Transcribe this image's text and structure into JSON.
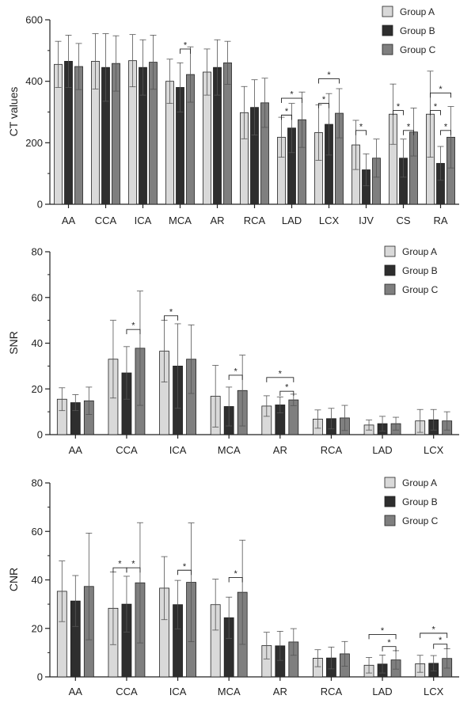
{
  "chart_data": [
    {
      "type": "bar",
      "ylabel": "CT values",
      "ylim": [
        0,
        600
      ],
      "yticks": [
        0,
        200,
        400,
        600
      ],
      "categories": [
        "AA",
        "CCA",
        "ICA",
        "MCA",
        "AR",
        "RCA",
        "LAD",
        "LCX",
        "IJV",
        "CS",
        "RA"
      ],
      "series": [
        {
          "name": "Group A",
          "color": "#d9d9d9",
          "values": [
            455,
            465,
            467,
            400,
            430,
            298,
            218,
            233,
            193,
            293,
            293
          ],
          "errors": [
            75,
            90,
            85,
            72,
            75,
            85,
            65,
            90,
            80,
            98,
            140
          ]
        },
        {
          "name": "Group B",
          "color": "#2e2e2e",
          "values": [
            465,
            445,
            445,
            380,
            445,
            315,
            248,
            260,
            112,
            150,
            133
          ],
          "errors": [
            85,
            110,
            90,
            80,
            90,
            90,
            80,
            100,
            52,
            62,
            55
          ]
        },
        {
          "name": "Group C",
          "color": "#7f7f7f",
          "values": [
            448,
            458,
            462,
            422,
            460,
            330,
            275,
            296,
            150,
            235,
            218
          ],
          "errors": [
            75,
            90,
            88,
            90,
            70,
            80,
            90,
            80,
            62,
            78,
            100
          ]
        }
      ],
      "legend": "top-right",
      "significance": [
        {
          "cat": 3,
          "from": 1,
          "to": 2,
          "y": 505,
          "label": "*"
        },
        {
          "cat": 6,
          "from": 0,
          "to": 1,
          "y": 290,
          "label": "*"
        },
        {
          "cat": 6,
          "from": 0,
          "to": 2,
          "y": 345,
          "label": "*"
        },
        {
          "cat": 7,
          "from": 0,
          "to": 1,
          "y": 328,
          "label": "*"
        },
        {
          "cat": 7,
          "from": 0,
          "to": 2,
          "y": 408,
          "label": "*"
        },
        {
          "cat": 8,
          "from": 0,
          "to": 1,
          "y": 240,
          "label": "*"
        },
        {
          "cat": 9,
          "from": 0,
          "to": 1,
          "y": 305,
          "label": "*"
        },
        {
          "cat": 9,
          "from": 1,
          "to": 2,
          "y": 240,
          "label": "*"
        },
        {
          "cat": 10,
          "from": 0,
          "to": 1,
          "y": 305,
          "label": "*"
        },
        {
          "cat": 10,
          "from": 0,
          "to": 2,
          "y": 362,
          "label": "*"
        },
        {
          "cat": 10,
          "from": 1,
          "to": 2,
          "y": 240,
          "label": "*"
        }
      ]
    },
    {
      "type": "bar",
      "ylabel": "SNR",
      "ylim": [
        0,
        80
      ],
      "yticks": [
        0,
        20,
        40,
        60,
        80
      ],
      "categories": [
        "AA",
        "CCA",
        "ICA",
        "MCA",
        "AR",
        "RCA",
        "LAD",
        "LCX"
      ],
      "series": [
        {
          "name": "Group A",
          "color": "#d9d9d9",
          "values": [
            15.5,
            33,
            36.5,
            16.8,
            12.5,
            6.8,
            4.2,
            6
          ],
          "errors": [
            5,
            17,
            13.5,
            13.5,
            4.5,
            4,
            2.2,
            5
          ]
        },
        {
          "name": "Group B",
          "color": "#2e2e2e",
          "values": [
            14,
            27,
            30,
            12.3,
            13,
            7,
            4.8,
            6.5
          ],
          "errors": [
            3.5,
            11.5,
            18.5,
            8.5,
            3.5,
            4.5,
            3.2,
            4.5
          ]
        },
        {
          "name": "Group C",
          "color": "#7f7f7f",
          "values": [
            14.8,
            37.8,
            33,
            19.3,
            15.2,
            7.3,
            4.8,
            6
          ],
          "errors": [
            6,
            25,
            15,
            15.5,
            2.5,
            5.5,
            2.8,
            4
          ]
        }
      ],
      "legend": "top-right",
      "significance": [
        {
          "cat": 1,
          "from": 1,
          "to": 2,
          "y": 46,
          "label": "*"
        },
        {
          "cat": 2,
          "from": 0,
          "to": 1,
          "y": 52,
          "label": "*"
        },
        {
          "cat": 3,
          "from": 1,
          "to": 2,
          "y": 26,
          "label": "*"
        },
        {
          "cat": 4,
          "from": 0,
          "to": 2,
          "y": 25,
          "label": "*"
        },
        {
          "cat": 4,
          "from": 1,
          "to": 2,
          "y": 19,
          "label": "*"
        }
      ]
    },
    {
      "type": "bar",
      "ylabel": "CNR",
      "ylim": [
        0,
        80
      ],
      "yticks": [
        0,
        20,
        40,
        60,
        80
      ],
      "categories": [
        "AA",
        "CCA",
        "ICA",
        "MCA",
        "AR",
        "RCA",
        "LAD",
        "LCX"
      ],
      "series": [
        {
          "name": "Group A",
          "color": "#d9d9d9",
          "values": [
            35.3,
            28.3,
            36.6,
            29.8,
            12.9,
            7.7,
            4.8,
            5.4
          ],
          "errors": [
            12.5,
            15,
            13,
            10.5,
            5.5,
            3.5,
            3.2,
            3.5
          ]
        },
        {
          "name": "Group B",
          "color": "#2e2e2e",
          "values": [
            31.3,
            30,
            29.8,
            24.4,
            12.8,
            7.8,
            5.3,
            5.6
          ],
          "errors": [
            10.5,
            11.5,
            10,
            8.5,
            6,
            4.5,
            3.7,
            3.2
          ]
        },
        {
          "name": "Group C",
          "color": "#7f7f7f",
          "values": [
            37.3,
            38.8,
            39,
            34.9,
            14.4,
            9.5,
            7,
            7.6
          ],
          "errors": [
            22,
            24.8,
            24.5,
            21.5,
            5.5,
            5.1,
            3.8,
            4
          ]
        }
      ],
      "legend": "top-right",
      "significance": [
        {
          "cat": 1,
          "from": 0,
          "to": 1,
          "y": 45,
          "label": "*"
        },
        {
          "cat": 1,
          "from": 1,
          "to": 2,
          "y": 45,
          "label": "*"
        },
        {
          "cat": 2,
          "from": 1,
          "to": 2,
          "y": 44,
          "label": "*"
        },
        {
          "cat": 3,
          "from": 1,
          "to": 2,
          "y": 41,
          "label": "*"
        },
        {
          "cat": 6,
          "from": 0,
          "to": 2,
          "y": 17.5,
          "label": "*"
        },
        {
          "cat": 6,
          "from": 1,
          "to": 2,
          "y": 12.5,
          "label": "*"
        },
        {
          "cat": 7,
          "from": 0,
          "to": 2,
          "y": 18,
          "label": "*"
        },
        {
          "cat": 7,
          "from": 1,
          "to": 2,
          "y": 13.5,
          "label": "*"
        }
      ]
    }
  ]
}
